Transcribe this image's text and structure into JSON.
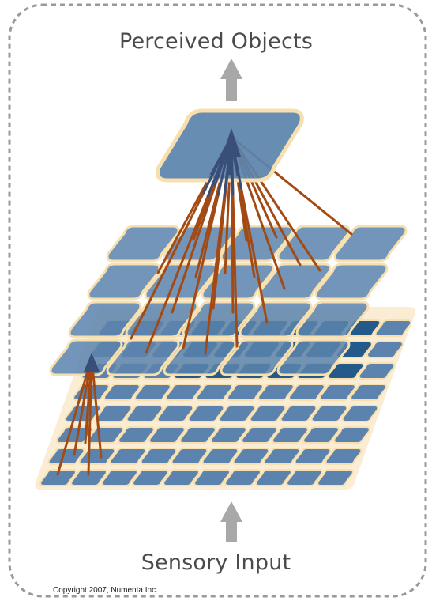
{
  "title_top": "Perceived Objects",
  "title_bottom": "Sensory Input",
  "copyright": "Copyright 2007, Numenta Inc.",
  "colors": {
    "cell_fill": "#5b83ad",
    "cell_dark": "#245a8a",
    "cell_border": "#f7dfae",
    "connection": "#a34a14",
    "arrow": "#a8a8a8",
    "frame": "#9a9a9a"
  },
  "levels": [
    {
      "name": "level-1",
      "rows": 8,
      "cols": 10
    },
    {
      "name": "level-2",
      "rows": 4,
      "cols": 5
    },
    {
      "name": "level-3",
      "rows": 1,
      "cols": 1
    }
  ]
}
